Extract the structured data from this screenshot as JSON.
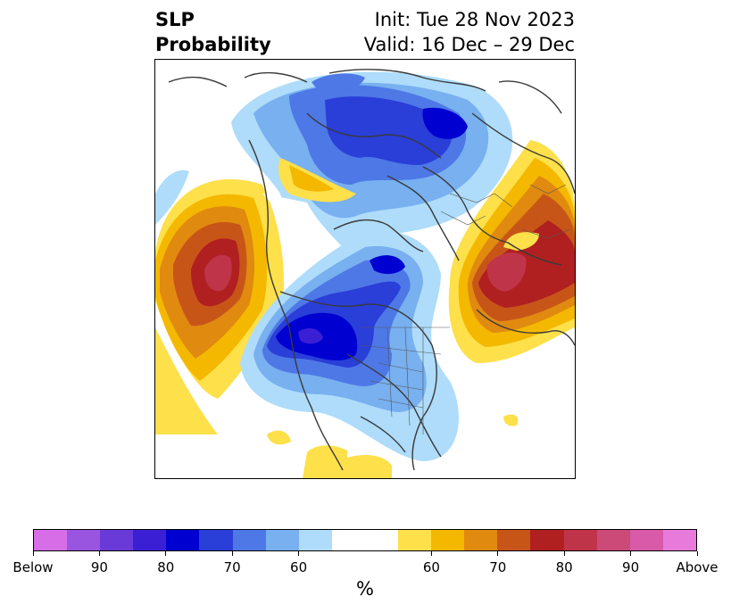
{
  "title": {
    "left_line1": "SLP",
    "left_line2": "Probability",
    "right_line1": "Init: Tue 28 Nov 2023",
    "right_line2": "Valid: 16 Dec – 29 Dec"
  },
  "colorbar": {
    "unit": "%",
    "colors": [
      "#d76ee8",
      "#9a55e0",
      "#6a3ad8",
      "#3b1fd4",
      "#0000d0",
      "#2a3ed8",
      "#4e78e6",
      "#78b0f0",
      "#aedcfa",
      "#ffffff",
      "#ffffff",
      "#fde04a",
      "#f4b800",
      "#e08a10",
      "#c85518",
      "#b02020",
      "#c0344a",
      "#cc4a78",
      "#d85aa8",
      "#e87adc"
    ],
    "tick_labels": [
      "Below",
      "90",
      "80",
      "70",
      "60",
      "60",
      "70",
      "80",
      "90",
      "Above"
    ]
  },
  "legend_colors": {
    "below_strong": "#0000d0",
    "below_moderate": "#4e78e6",
    "below_weak": "#aedcfa",
    "above_weak": "#fde04a",
    "above_moderate": "#e08a10",
    "above_strong": "#b02020",
    "above_peak": "#c0344a"
  }
}
